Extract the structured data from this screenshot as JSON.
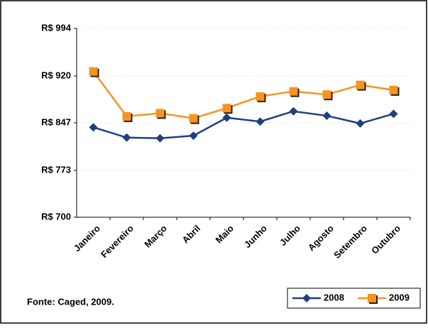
{
  "chart_data": {
    "type": "line",
    "categories": [
      "Janeiro",
      "Fevereiro",
      "Março",
      "Abril",
      "Maio",
      "Junho",
      "Julho",
      "Agosto",
      "Setembro",
      "Outubro"
    ],
    "series": [
      {
        "name": "2008",
        "color": "#1f3f7f",
        "marker": "diamond",
        "values": [
          840,
          824,
          823,
          827,
          855,
          849,
          865,
          858,
          846,
          861
        ]
      },
      {
        "name": "2009",
        "color": "#f7941d",
        "marker": "square",
        "values": [
          927,
          857,
          862,
          854,
          870,
          888,
          896,
          891,
          906,
          898
        ]
      }
    ],
    "ylim": [
      700,
      994
    ],
    "yticks": [
      {
        "value": 700,
        "label": "R$ 700"
      },
      {
        "value": 773,
        "label": "R$ 773"
      },
      {
        "value": 847,
        "label": "R$ 847"
      },
      {
        "value": 920,
        "label": "R$ 920"
      },
      {
        "value": 994,
        "label": "R$ 994"
      }
    ],
    "grid": true,
    "legend": "bottom-right",
    "note": "Fonte: Caged,  2009."
  }
}
